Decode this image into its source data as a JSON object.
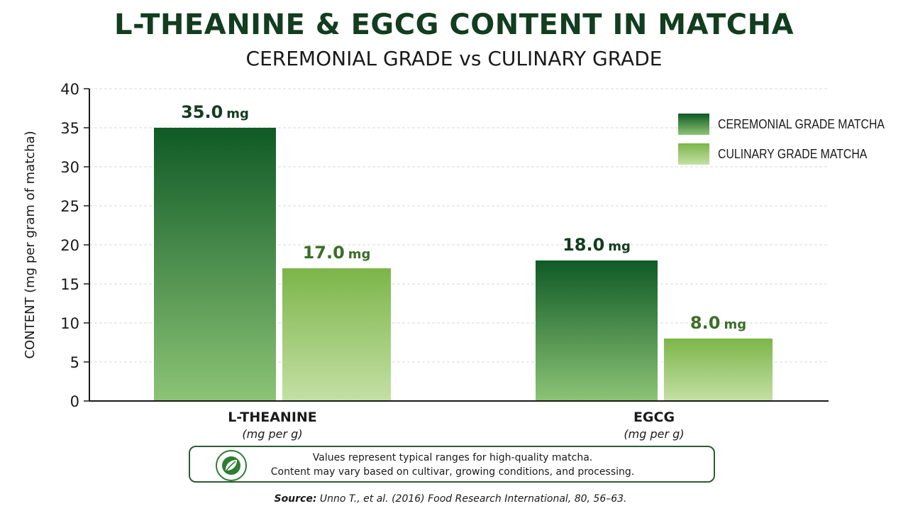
{
  "header": {
    "title": "L-THEANINE & EGCG CONTENT IN MATCHA",
    "subtitle": "CEREMONIAL GRADE vs CULINARY GRADE"
  },
  "chart_data": {
    "type": "bar",
    "categories": [
      "L-THEANINE",
      "EGCG"
    ],
    "category_units": [
      "(mg per g)",
      "(mg per g)"
    ],
    "series": [
      {
        "name": "CEREMONIAL GRADE MATCHA",
        "values": [
          35.0,
          18.0
        ],
        "color_top": "#0f5a26",
        "color_bottom": "#8cc475",
        "label_color": "#123d1f"
      },
      {
        "name": "CULINARY GRADE MATCHA",
        "values": [
          17.0,
          8.0
        ],
        "color_top": "#7cb54a",
        "color_bottom": "#c4e0a4",
        "label_color": "#3b6e2a"
      }
    ],
    "value_label_unit": "mg",
    "ylabel": "CONTENT (mg per gram of matcha)",
    "ylim": [
      0,
      40
    ],
    "yticks": [
      0,
      5,
      10,
      15,
      20,
      25,
      30,
      35,
      40
    ],
    "grid": true,
    "legend_position": "top-right"
  },
  "note": {
    "icon": "leaf-icon",
    "line1": "Values represent typical ranges for high-quality matcha.",
    "line2": "Content may vary based on cultivar, growing conditions, and processing."
  },
  "source": {
    "label": "Source:",
    "text": "Unno T., et al. (2016) Food Research International, 80, 56–63."
  }
}
